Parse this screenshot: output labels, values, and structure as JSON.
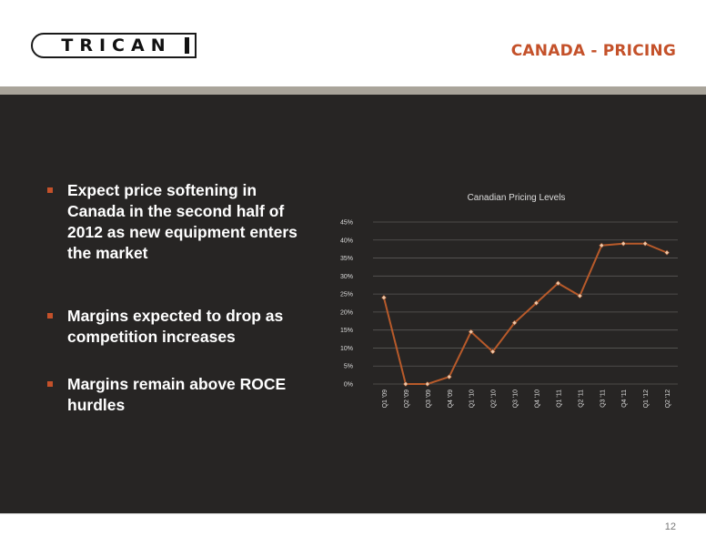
{
  "header": {
    "logo_text": "TRICAN",
    "title": "CANADA - PRICING"
  },
  "bullets": [
    "Expect price softening in Canada in the second half of 2012 as new equipment enters the market",
    "Margins expected to drop as competition increases",
    "Margins remain above ROCE hurdles"
  ],
  "page_number": "12",
  "colors": {
    "accent": "#c4512a",
    "panel": "#272524",
    "line": "#b85a2a",
    "marker": "#f0c8a8"
  },
  "chart_data": {
    "type": "line",
    "title": "Canadian Pricing Levels",
    "categories": [
      "Q1 '09",
      "Q2 '09",
      "Q3 '09",
      "Q4 '09",
      "Q1 '10",
      "Q2 '10",
      "Q3 '10",
      "Q4 '10",
      "Q1 '11",
      "Q2 '11",
      "Q3 '11",
      "Q4 '11",
      "Q1 '12",
      "Q2 '12"
    ],
    "y_ticks": [
      "0%",
      "5%",
      "10%",
      "15%",
      "20%",
      "25%",
      "30%",
      "35%",
      "40%",
      "45%"
    ],
    "ylim": [
      0,
      45
    ],
    "grid": true,
    "legend": "none",
    "series": [
      {
        "values": [
          24,
          0,
          0,
          2,
          14.5,
          9,
          17,
          22.5,
          28,
          24.5,
          38.5,
          39,
          39,
          36.5
        ]
      }
    ]
  }
}
